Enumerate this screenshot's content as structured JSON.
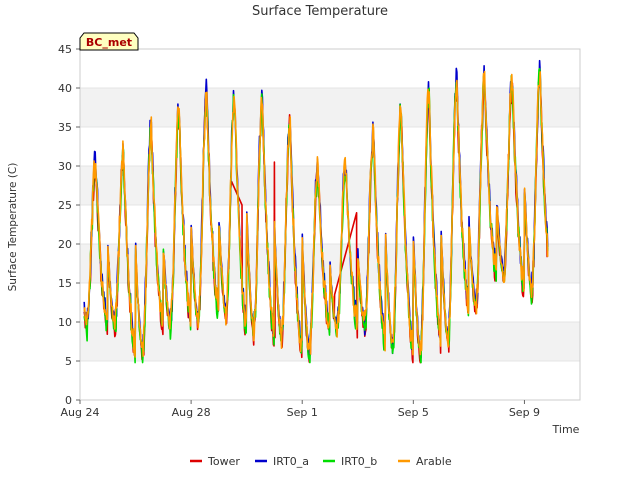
{
  "chart_data": {
    "type": "line",
    "title": "Surface Temperature",
    "xlabel": "Time",
    "ylabel": "Surface Temperature (C)",
    "site_badge": "BC_met",
    "xlim": [
      "2023-08-24",
      "2023-09-11"
    ],
    "ylim": [
      0,
      45
    ],
    "yticks": [
      0,
      5,
      10,
      15,
      20,
      25,
      30,
      35,
      40,
      45
    ],
    "xticks": [
      {
        "date": "2023-08-24",
        "label": "Aug 24"
      },
      {
        "date": "2023-08-28",
        "label": "Aug 28"
      },
      {
        "date": "2023-09-01",
        "label": "Sep 1"
      },
      {
        "date": "2023-09-05",
        "label": "Sep 5"
      },
      {
        "date": "2023-09-09",
        "label": "Sep 9"
      }
    ],
    "grid": true,
    "legend_position": "bottom",
    "colors": {
      "Tower": "#dd0000",
      "IRT0_a": "#0000cc",
      "IRT0_b": "#00dd00",
      "Arable": "#ff9900"
    },
    "daily_cycle": [
      {
        "date": "2023-08-24",
        "min": 9.5,
        "max": 30.5
      },
      {
        "date": "2023-08-25",
        "min": 9.5,
        "max": 31.5
      },
      {
        "date": "2023-08-26",
        "min": 6.0,
        "max": 35.0
      },
      {
        "date": "2023-08-27",
        "min": 9.5,
        "max": 37.0
      },
      {
        "date": "2023-08-28",
        "min": 10.0,
        "max": 39.0
      },
      {
        "date": "2023-08-29",
        "min": 11.0,
        "max": 39.0
      },
      {
        "date": "2023-08-30",
        "min": 9.0,
        "max": 38.5
      },
      {
        "date": "2023-08-31",
        "min": 8.0,
        "max": 35.5
      },
      {
        "date": "2023-09-01",
        "min": 6.0,
        "max": 30.0
      },
      {
        "date": "2023-09-02",
        "min": 9.0,
        "max": 30.0
      },
      {
        "date": "2023-09-03",
        "min": 9.5,
        "max": 34.0
      },
      {
        "date": "2023-09-04",
        "min": 7.0,
        "max": 37.5
      },
      {
        "date": "2023-09-05",
        "min": 6.0,
        "max": 39.5
      },
      {
        "date": "2023-09-06",
        "min": 7.5,
        "max": 41.0
      },
      {
        "date": "2023-09-07",
        "min": 12.0,
        "max": 41.0
      },
      {
        "date": "2023-09-08",
        "min": 16.0,
        "max": 41.0
      },
      {
        "date": "2023-09-09",
        "min": 14.0,
        "max": 42.0
      }
    ],
    "series": [
      {
        "name": "Tower",
        "notes_gaps": [
          {
            "from": "2023-08-29T11:00",
            "to": "2023-08-29T20:00",
            "from_value": 28.0,
            "to_value": 25.0
          },
          {
            "from": "2023-09-02T04:00",
            "to": "2023-09-02T23:00",
            "from_value": 13.5,
            "to_value": 24.0
          }
        ],
        "spike": {
          "time": "2023-08-31T00:00",
          "value": 30.5
        }
      },
      {
        "name": "IRT0_a"
      },
      {
        "name": "IRT0_b"
      },
      {
        "name": "Arable"
      }
    ]
  }
}
